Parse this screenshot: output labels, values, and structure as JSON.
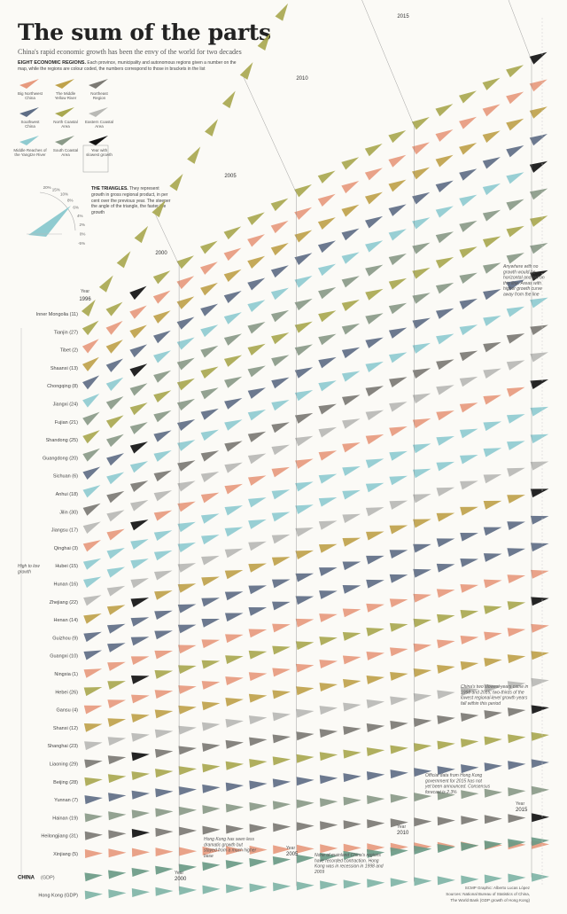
{
  "title": "The sum of the parts",
  "subtitle": "China's rapid economic growth has been the envy of the world for two decades",
  "legend": {
    "heading": "EIGHT ECONOMIC REGIONS.",
    "text": "Each province, municipality and autonomous regions given a number on the map, while the regions are colour coded, the numbers correspond to those in brackets in the list",
    "items": [
      {
        "label": "Big Northwest China",
        "color": "#e79a7e"
      },
      {
        "label": "The Middle Yellow River",
        "color": "#bfa24b"
      },
      {
        "label": "Northeast Region",
        "color": "#7c7a74"
      },
      {
        "label": "Southwest China",
        "color": "#5f6e86"
      },
      {
        "label": "North Coastal Area",
        "color": "#a9a850"
      },
      {
        "label": "Eastern Coastal Area",
        "color": "#b9b9b5"
      },
      {
        "label": "Middle Reaches of the Yangtze River",
        "color": "#8fcbd0"
      },
      {
        "label": "South Coastal Area",
        "color": "#8a9a88"
      },
      {
        "label": "Year with slowest growth",
        "color": "#111111"
      }
    ]
  },
  "triangles": {
    "heading": "THE TRIANGLES.",
    "text": "They represent growth in gross regional product, in per cent over the previous year. The steeper the angle of the triangle, the faster the growth",
    "dial_labels": [
      "20%",
      "15%",
      "10%",
      "8%",
      "6%",
      "4%",
      "2%",
      "0%",
      "-5%"
    ]
  },
  "labels": {
    "year_start": "Year 1996",
    "high_low": "High to low growth",
    "china_gdp": "CHINA",
    "china_gdp_suffix": "(GDP)",
    "hk": "Hong Kong (GDP)"
  },
  "annotations": {
    "no_growth": "Anywhere with no growth would be horizontal and out on this line. Areas with higher growth curve away from the line",
    "slowest": "China's two slowest years came in 1998 and 2015; two-thirds of the lowest regional-level growth years fall within this period",
    "official": "Official data from Hong Kong government for 2015 has not yet been announced. Consensus forecast is 2.3%",
    "hk_note": "Hong Kong has seen less dramatic growth but stayed from a much higher base",
    "none_china": "None of mainland China's regions have recorded contraction. Hong Kong was in recession in 1998 and 2009",
    "credit1": "SCMP Graphic: Alberto Lucas López",
    "credit2": "Sources: National Bureau of Statistics of China,",
    "credit3": "The World Bank (GDP growth of Hong Kong)"
  },
  "chart_data": {
    "type": "line",
    "title": "The sum of the parts",
    "x": [
      1996,
      2015
    ],
    "year_markers": [
      "2000",
      "2005",
      "2010",
      "2015"
    ],
    "year_axis_labels": {
      "start": "Year 1996",
      "end": "Year 2015",
      "mid1": "Year 2000",
      "mid2": "Year 2005",
      "mid3": "Year 2010"
    },
    "series": [
      {
        "name": "Inner Mongolia (11)",
        "region": "North Coastal Area"
      },
      {
        "name": "Tianjin (27)",
        "region": "North Coastal Area"
      },
      {
        "name": "Tibet (2)",
        "region": "Big Northwest China"
      },
      {
        "name": "Shaanxi (13)",
        "region": "The Middle Yellow River"
      },
      {
        "name": "Chongqing (8)",
        "region": "Southwest China"
      },
      {
        "name": "Jiangxi (24)",
        "region": "Middle Reaches of the Yangtze River"
      },
      {
        "name": "Fujian (21)",
        "region": "South Coastal Area"
      },
      {
        "name": "Shandong (25)",
        "region": "North Coastal Area"
      },
      {
        "name": "Guangdong (20)",
        "region": "South Coastal Area"
      },
      {
        "name": "Sichuan (6)",
        "region": "Southwest China"
      },
      {
        "name": "Anhui (18)",
        "region": "Middle Reaches of the Yangtze River"
      },
      {
        "name": "Jilin (30)",
        "region": "Northeast Region"
      },
      {
        "name": "Jiangsu (17)",
        "region": "Eastern Coastal Area"
      },
      {
        "name": "Qinghai (3)",
        "region": "Big Northwest China"
      },
      {
        "name": "Hubei (15)",
        "region": "Middle Reaches of the Yangtze River"
      },
      {
        "name": "Hunan (16)",
        "region": "Middle Reaches of the Yangtze River"
      },
      {
        "name": "Zhejiang (22)",
        "region": "Eastern Coastal Area"
      },
      {
        "name": "Henan (14)",
        "region": "The Middle Yellow River"
      },
      {
        "name": "Guizhou (9)",
        "region": "Southwest China"
      },
      {
        "name": "Guangxi (10)",
        "region": "Southwest China"
      },
      {
        "name": "Ningxia (1)",
        "region": "Big Northwest China"
      },
      {
        "name": "Hebei (26)",
        "region": "North Coastal Area"
      },
      {
        "name": "Gansu (4)",
        "region": "Big Northwest China"
      },
      {
        "name": "Shanxi (12)",
        "region": "The Middle Yellow River"
      },
      {
        "name": "Shanghai (23)",
        "region": "Eastern Coastal Area"
      },
      {
        "name": "Liaoning (29)",
        "region": "Northeast Region"
      },
      {
        "name": "Beijing (28)",
        "region": "North Coastal Area"
      },
      {
        "name": "Yunnan (7)",
        "region": "Southwest China"
      },
      {
        "name": "Hainan (19)",
        "region": "South Coastal Area"
      },
      {
        "name": "Heilongjiang (31)",
        "region": "Northeast Region"
      },
      {
        "name": "Xinjiang (5)",
        "region": "Big Northwest China"
      },
      {
        "name": "CHINA (GDP)",
        "region": "National"
      },
      {
        "name": "Hong Kong (GDP)",
        "region": "Hong Kong"
      }
    ]
  }
}
